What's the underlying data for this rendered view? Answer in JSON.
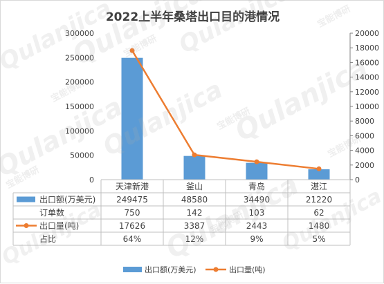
{
  "chart_data": {
    "type": "bar",
    "title": "2022上半年桑塔出口目的港情况",
    "categories": [
      "天津新港",
      "釜山",
      "青岛",
      "湛江"
    ],
    "series": [
      {
        "name": "出口额(万美元)",
        "type": "bar",
        "axis": "left",
        "color": "#5b9bd5",
        "values": [
          249475,
          48580,
          34490,
          21220
        ]
      },
      {
        "name": "出口量(吨)",
        "type": "line",
        "axis": "right",
        "color": "#ed7d31",
        "values": [
          17626,
          3387,
          2443,
          1480
        ]
      }
    ],
    "table_rows": [
      {
        "label": "出口额(万美元)",
        "marker": "bar",
        "cells": [
          "249475",
          "48580",
          "34490",
          "21220"
        ]
      },
      {
        "label": "订单数",
        "marker": "none",
        "cells": [
          "750",
          "142",
          "103",
          "62"
        ]
      },
      {
        "label": "出口量(吨)",
        "marker": "line",
        "cells": [
          "17626",
          "3387",
          "2443",
          "1480"
        ]
      },
      {
        "label": "占比",
        "marker": "none",
        "cells": [
          "64%",
          "12%",
          "9%",
          "5%"
        ]
      }
    ],
    "ylim_left": [
      0,
      300000
    ],
    "yticks_left": [
      "0",
      "50000",
      "100000",
      "150000",
      "200000",
      "250000",
      "300000"
    ],
    "ylim_right": [
      0,
      20000
    ],
    "yticks_right": [
      "0",
      "2000",
      "4000",
      "6000",
      "8000",
      "10000",
      "12000",
      "14000",
      "16000",
      "18000",
      "20000"
    ],
    "legend": [
      "出口额(万美元)",
      "出口量(吨)"
    ],
    "legend_position": "bottom",
    "grid": false
  },
  "watermark": {
    "text": "Qulanjica",
    "cn_text": "宝能博研"
  }
}
